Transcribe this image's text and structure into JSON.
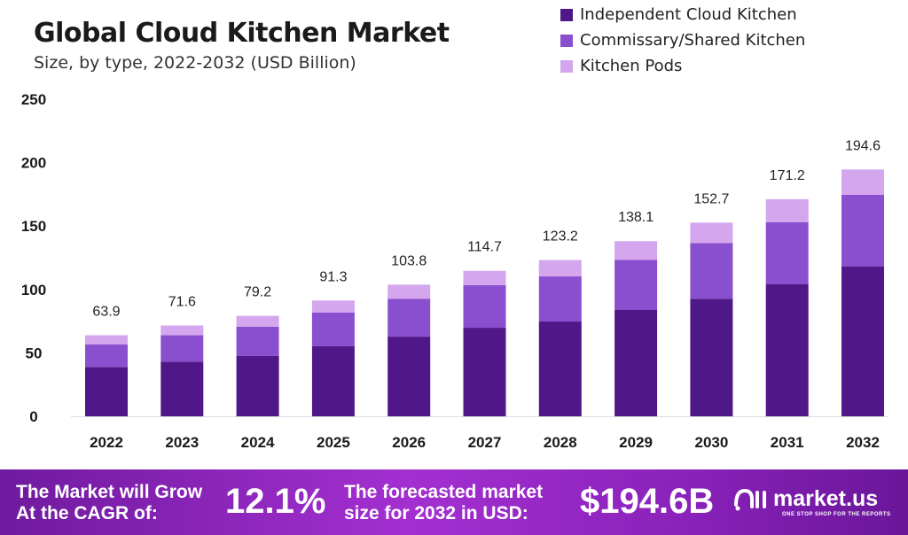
{
  "title": "Global Cloud Kitchen Market",
  "subtitle": "Size, by type, 2022-2032 (USD Billion)",
  "chart_data": {
    "type": "bar",
    "stacked": true,
    "title": "Global Cloud Kitchen Market",
    "subtitle": "Size, by type, 2022-2032 (USD Billion)",
    "categories": [
      "2022",
      "2023",
      "2024",
      "2025",
      "2026",
      "2027",
      "2028",
      "2029",
      "2030",
      "2031",
      "2032"
    ],
    "series": [
      {
        "name": "Independent Cloud Kitchen",
        "color": "#4f1787",
        "values": [
          38.9,
          43.1,
          47.7,
          55.2,
          62.8,
          69.8,
          74.7,
          83.8,
          92.7,
          104.3,
          118.0
        ]
      },
      {
        "name": "Commissary/Shared Kitchen",
        "color": "#8a4fcf",
        "values": [
          17.9,
          20.9,
          23.0,
          26.7,
          29.9,
          33.6,
          35.6,
          39.6,
          43.9,
          48.8,
          56.6
        ]
      },
      {
        "name": "Kitchen Pods",
        "color": "#d4a6ee",
        "values": [
          7.1,
          7.6,
          8.5,
          9.4,
          11.1,
          11.3,
          12.9,
          14.7,
          16.1,
          18.1,
          20.0
        ]
      }
    ],
    "totals": [
      "63.9",
      "71.6",
      "79.2",
      "91.3",
      "103.8",
      "114.7",
      "123.2",
      "138.1",
      "152.7",
      "171.2",
      "194.6"
    ],
    "yticks": [
      "0",
      "50",
      "100",
      "150",
      "200",
      "250"
    ],
    "ylim": [
      0,
      250
    ],
    "grid": false,
    "legend": "top-right"
  },
  "banner": {
    "cagr_label_1": "The Market will Grow",
    "cagr_label_2": "At the CAGR of:",
    "cagr_value": "12.1%",
    "forecast_label_1": "The forecasted market",
    "forecast_label_2": "size for 2032 in USD:",
    "forecast_value": "$194.6B",
    "logo_name": "market.us",
    "logo_tagline": "ONE STOP SHOP FOR THE REPORTS"
  }
}
